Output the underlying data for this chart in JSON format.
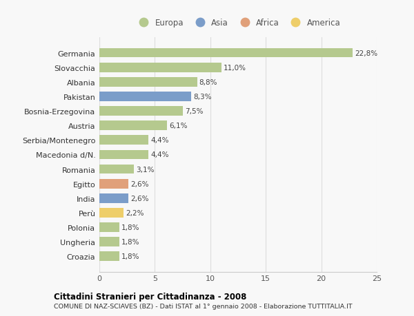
{
  "categories": [
    "Germania",
    "Slovacchia",
    "Albania",
    "Pakistan",
    "Bosnia-Erzegovina",
    "Austria",
    "Serbia/Montenegro",
    "Macedonia d/N.",
    "Romania",
    "Egitto",
    "India",
    "Perù",
    "Polonia",
    "Ungheria",
    "Croazia"
  ],
  "values": [
    22.8,
    11.0,
    8.8,
    8.3,
    7.5,
    6.1,
    4.4,
    4.4,
    3.1,
    2.6,
    2.6,
    2.2,
    1.8,
    1.8,
    1.8
  ],
  "labels": [
    "22,8%",
    "11,0%",
    "8,8%",
    "8,3%",
    "7,5%",
    "6,1%",
    "4,4%",
    "4,4%",
    "3,1%",
    "2,6%",
    "2,6%",
    "2,2%",
    "1,8%",
    "1,8%",
    "1,8%"
  ],
  "continents": [
    "Europa",
    "Europa",
    "Europa",
    "Asia",
    "Europa",
    "Europa",
    "Europa",
    "Europa",
    "Europa",
    "Africa",
    "Asia",
    "America",
    "Europa",
    "Europa",
    "Europa"
  ],
  "continent_colors": {
    "Europa": "#b5c98e",
    "Asia": "#7b9dc9",
    "Africa": "#e0a07a",
    "America": "#eece6a"
  },
  "legend_entries": [
    "Europa",
    "Asia",
    "Africa",
    "America"
  ],
  "title": "Cittadini Stranieri per Cittadinanza - 2008",
  "subtitle": "COMUNE DI NAZ-SCIAVES (BZ) - Dati ISTAT al 1° gennaio 2008 - Elaborazione TUTTITALIA.IT",
  "xlim": [
    0,
    25
  ],
  "xticks": [
    0,
    5,
    10,
    15,
    20,
    25
  ],
  "background_color": "#f8f8f8",
  "grid_color": "#dddddd"
}
